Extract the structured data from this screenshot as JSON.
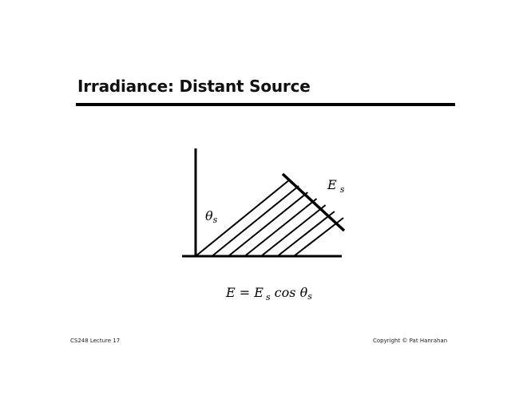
{
  "slide": {
    "title": "Irradiance: Distant Source",
    "footer_left": "CS248 Lecture 17",
    "footer_right": "Copyright © Pat Hanrahan"
  },
  "diagram": {
    "source_label": "E",
    "source_label_sub": "s",
    "angle_label": "θ",
    "angle_label_sub": "s",
    "equation": {
      "lhs": "E = E",
      "sub1": "s",
      "mid": " cos θ",
      "sub2": "s"
    },
    "ray_count": 7
  }
}
